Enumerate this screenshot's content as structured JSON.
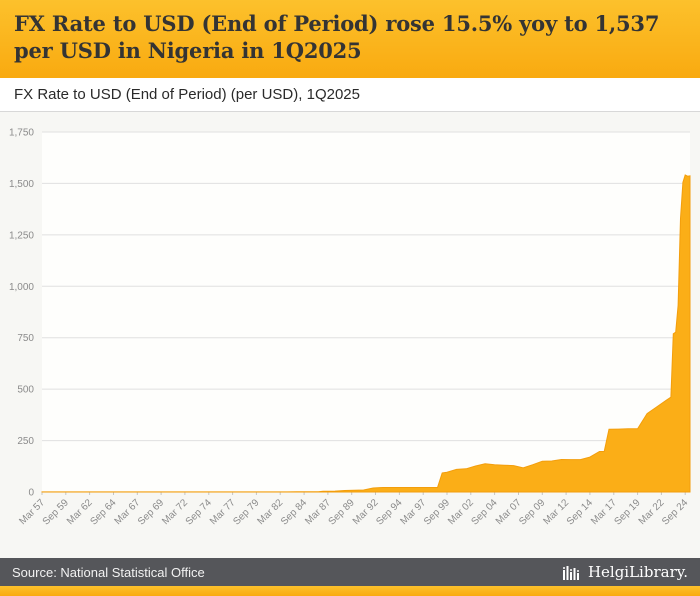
{
  "header": {
    "title": "FX Rate to USD (End of Period) rose 15.5% yoy to 1,537 per USD in Nigeria in 1Q2025",
    "subtitle": "FX Rate to USD (End of Period) (per USD), 1Q2025"
  },
  "footer": {
    "source": "Source: National Statistical Office",
    "brand": "HelgiLibrary."
  },
  "colors": {
    "accent": "#FBAE17",
    "accent_dark": "#F39E0C",
    "header_top": "#FCC12C",
    "header_bottom": "#F9AA10",
    "footer_bg": "#55565A",
    "section_bg": "#F7F7F4",
    "grid": "#E0E0E0",
    "axis_text": "#8B8B8B",
    "title_text": "#343434"
  },
  "chart_data": {
    "type": "area",
    "title": "FX Rate to USD (End of Period) (per USD), 1Q2025",
    "country": "Nigeria",
    "ylim": [
      0,
      1750
    ],
    "y_ticks": [
      0,
      250,
      500,
      750,
      1000,
      1250,
      1500,
      1750
    ],
    "y_tick_labels": [
      "0",
      "250",
      "500",
      "750",
      "1,000",
      "1,250",
      "1,500",
      "1,750"
    ],
    "x_range": [
      1957.25,
      2025.25
    ],
    "x_tick_step_years": 2.5,
    "x_tick_labels": [
      "Mar 57",
      "Sep 59",
      "Mar 62",
      "Sep 64",
      "Mar 67",
      "Sep 69",
      "Mar 72",
      "Sep 74",
      "Mar 77",
      "Sep 79",
      "Mar 82",
      "Sep 84",
      "Mar 87",
      "Sep 89",
      "Mar 92",
      "Sep 94",
      "Mar 97",
      "Sep 99",
      "Mar 02",
      "Sep 04",
      "Mar 07",
      "Sep 09",
      "Mar 12",
      "Sep 14",
      "Mar 17",
      "Sep 19",
      "Mar 22",
      "Sep 24"
    ],
    "grid": true,
    "legend": false,
    "points": [
      [
        1957.25,
        0.71
      ],
      [
        1962.0,
        0.71
      ],
      [
        1966.0,
        0.71
      ],
      [
        1970.0,
        0.71
      ],
      [
        1972.0,
        0.66
      ],
      [
        1974.0,
        0.62
      ],
      [
        1976.0,
        0.63
      ],
      [
        1978.0,
        0.61
      ],
      [
        1980.0,
        0.55
      ],
      [
        1981.0,
        0.64
      ],
      [
        1982.0,
        0.67
      ],
      [
        1983.0,
        0.72
      ],
      [
        1984.0,
        0.81
      ],
      [
        1985.0,
        0.89
      ],
      [
        1986.25,
        1.0
      ],
      [
        1986.75,
        3.32
      ],
      [
        1987.0,
        4.02
      ],
      [
        1988.0,
        4.54
      ],
      [
        1989.0,
        7.39
      ],
      [
        1990.0,
        8.7
      ],
      [
        1991.0,
        9.91
      ],
      [
        1992.0,
        19.66
      ],
      [
        1993.0,
        22.07
      ],
      [
        1994.0,
        21.89
      ],
      [
        1996.0,
        21.89
      ],
      [
        1998.75,
        21.89
      ],
      [
        1999.25,
        92.3
      ],
      [
        1999.75,
        96.1
      ],
      [
        2000.75,
        110.1
      ],
      [
        2001.75,
        113.0
      ],
      [
        2002.75,
        126.4
      ],
      [
        2003.75,
        137.0
      ],
      [
        2004.75,
        132.9
      ],
      [
        2005.75,
        130.3
      ],
      [
        2006.75,
        128.3
      ],
      [
        2007.75,
        117.8
      ],
      [
        2008.75,
        132.6
      ],
      [
        2009.75,
        149.6
      ],
      [
        2010.75,
        150.7
      ],
      [
        2011.75,
        158.2
      ],
      [
        2012.75,
        157.3
      ],
      [
        2013.75,
        157.3
      ],
      [
        2014.75,
        169.7
      ],
      [
        2015.75,
        197.0
      ],
      [
        2016.25,
        197.0
      ],
      [
        2016.75,
        305.0
      ],
      [
        2017.75,
        306.0
      ],
      [
        2018.75,
        307.0
      ],
      [
        2019.75,
        307.0
      ],
      [
        2020.75,
        381.0
      ],
      [
        2021.75,
        413.0
      ],
      [
        2022.75,
        446.0
      ],
      [
        2023.25,
        461.0
      ],
      [
        2023.5,
        769.0
      ],
      [
        2023.75,
        777.0
      ],
      [
        2024.0,
        907.0
      ],
      [
        2024.25,
        1330.0
      ],
      [
        2024.5,
        1505.0
      ],
      [
        2024.75,
        1541.0
      ],
      [
        2025.0,
        1535.0
      ],
      [
        2025.25,
        1537.0
      ]
    ],
    "latest": {
      "period": "1Q2025",
      "value": 1537,
      "yoy_pct": 15.5
    }
  }
}
